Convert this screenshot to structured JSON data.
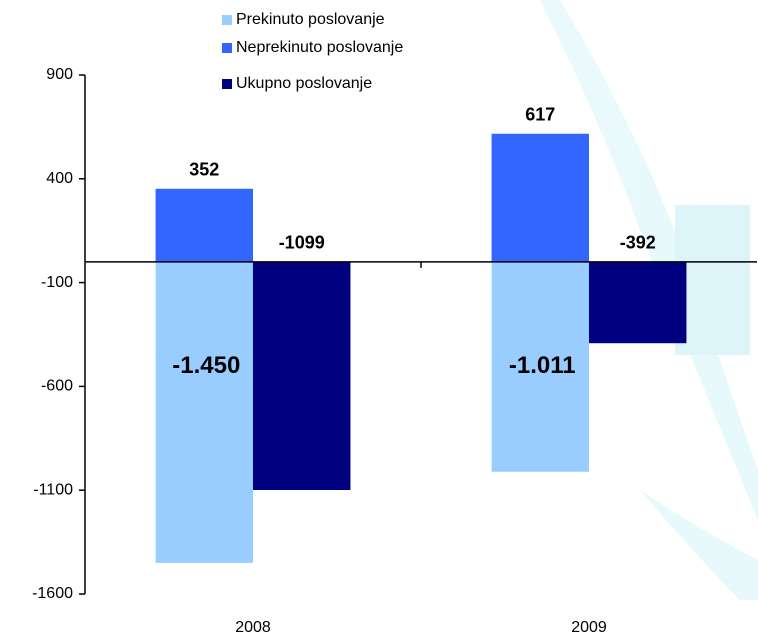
{
  "chart_data": {
    "type": "bar",
    "categories": [
      "2008",
      "2009"
    ],
    "series": [
      {
        "name": "Prekinuto poslovanje",
        "color": "#99ccff",
        "values": [
          -1450,
          -1011
        ],
        "value_labels": [
          "-1.450",
          "-1.011"
        ]
      },
      {
        "name": "Neprekinuto poslovanje",
        "color": "#3366ff",
        "values": [
          352,
          617
        ]
      },
      {
        "name": "Ukupno poslovanje",
        "color": "#000080",
        "values": [
          -1099,
          -392
        ]
      }
    ],
    "ylim": [
      -1600,
      900
    ],
    "yticks": [
      -1600,
      -1100,
      -600,
      -100,
      400,
      900
    ],
    "grid": false,
    "legend": "top"
  }
}
